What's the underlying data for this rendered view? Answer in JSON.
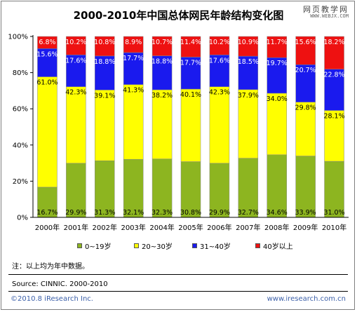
{
  "header": {
    "title": "2000-2010年中国总体网民年龄结构变化图",
    "logo_cn": "网页教学网",
    "logo_url": "WWW.WEBJX.COM"
  },
  "note": "注：以上均为年中数据。",
  "source": "Source: CINNIC. 2000-2010",
  "footer": {
    "copyright": "©2010.8 iResearch Inc.",
    "site": "www.iresearch.com.cn"
  },
  "colors": {
    "green": "#8db520",
    "yellow": "#ffff00",
    "blue": "#1a1aee",
    "red": "#ee1111"
  },
  "chart_data": {
    "type": "bar",
    "stacked": true,
    "title": "2000-2010年中国总体网民年龄结构变化图",
    "xlabel": "",
    "ylabel": "",
    "ylim": [
      0,
      100
    ],
    "yticks": [
      "0%",
      "20%",
      "40%",
      "60%",
      "80%",
      "100%"
    ],
    "categories": [
      "2000年",
      "2001年",
      "2002年",
      "2003年",
      "2004年",
      "2005年",
      "2006年",
      "2007年",
      "2008年",
      "2009年",
      "2010年"
    ],
    "legend_position": "bottom",
    "series": [
      {
        "name": "0~19岁",
        "color": "#8db520",
        "values": [
          16.7,
          29.9,
          31.3,
          32.1,
          32.3,
          30.8,
          29.9,
          32.7,
          34.6,
          33.9,
          31.0
        ],
        "labels": [
          "16.7%",
          "29.9%",
          "31.3%",
          "32.1%",
          "32.3%",
          "30.8%",
          "29.9%",
          "32.7%",
          "34.6%",
          "33.9%",
          "31.0%"
        ]
      },
      {
        "name": "20~30岁",
        "color": "#ffff00",
        "values": [
          61.0,
          42.3,
          39.1,
          41.3,
          38.2,
          40.1,
          42.3,
          37.9,
          34.0,
          29.8,
          28.1
        ],
        "labels": [
          "61.0%",
          "42.3%",
          "39.1%",
          "41.3%",
          "38.2%",
          "40.1%",
          "42.3%",
          "37.9%",
          "34.0%",
          "29.8%",
          "28.1%"
        ]
      },
      {
        "name": "31~40岁",
        "color": "#1a1aee",
        "values": [
          15.6,
          17.6,
          18.8,
          17.7,
          18.8,
          17.7,
          17.6,
          18.5,
          19.7,
          20.7,
          22.8
        ],
        "labels": [
          "15.6%",
          "17.6%",
          "18.8%",
          "17.7%",
          "18.8%",
          "17.7%",
          "17.6%",
          "18.5%",
          "19.7%",
          "20.7%",
          "22.8%"
        ]
      },
      {
        "name": "40岁以上",
        "color": "#ee1111",
        "values": [
          6.8,
          10.2,
          10.8,
          8.9,
          10.7,
          11.4,
          10.2,
          10.9,
          11.7,
          15.6,
          18.2
        ],
        "labels": [
          "6.8%",
          "10.2%",
          "10.8%",
          "8.9%",
          "10.7%",
          "11.4%",
          "10.2%",
          "10.9%",
          "11.7%",
          "15.6%",
          "18.2%"
        ]
      }
    ]
  }
}
